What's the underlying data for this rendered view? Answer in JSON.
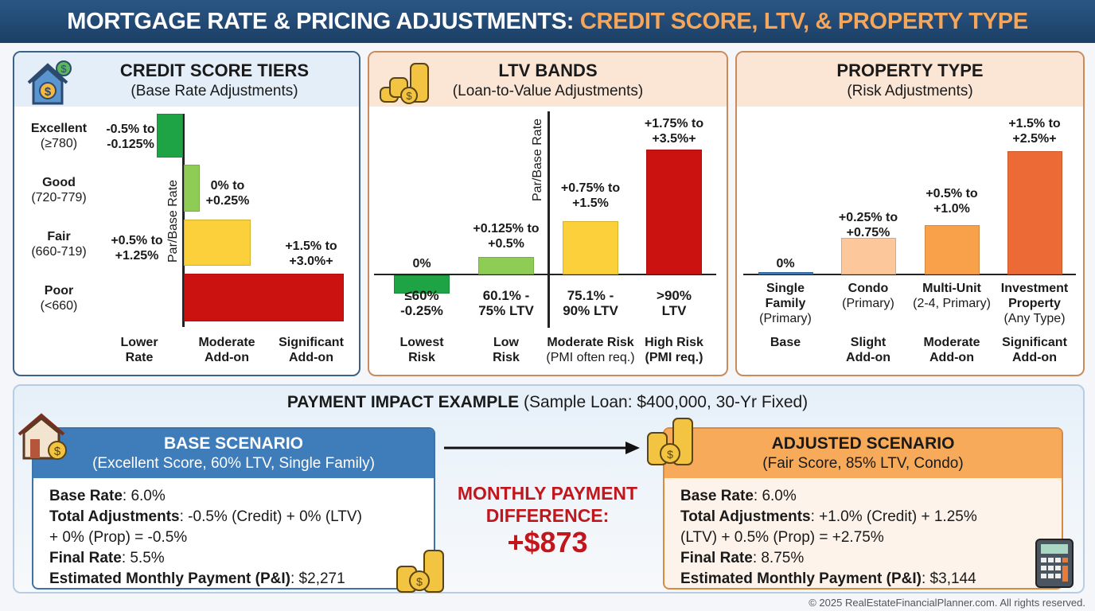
{
  "header": {
    "title_main": "MORTGAGE RATE & PRICING ADJUSTMENTS: ",
    "title_accent": "CREDIT SCORE, LTV, & PROPERTY TYPE"
  },
  "colors": {
    "green": "#1ea345",
    "light_green": "#8fcc55",
    "yellow": "#fcd03a",
    "red": "#cc1111",
    "navy": "#1f4a75",
    "orange": "#f6a65a"
  },
  "chart_data": [
    {
      "type": "bar",
      "orientation": "horizontal",
      "title": "CREDIT SCORE TIERS",
      "subtitle": "(Base Rate Adjustments)",
      "axis_label": "Par/Base Rate",
      "categories": [
        {
          "name": "Excellent",
          "range": "(≥780)"
        },
        {
          "name": "Good",
          "range": "(720-779)"
        },
        {
          "name": "Fair",
          "range": "(660-719)"
        },
        {
          "name": "Poor",
          "range": "(<660)"
        }
      ],
      "adjustments": [
        {
          "low": -0.5,
          "high": -0.125,
          "label1": "-0.5% to",
          "label2": "-0.125%"
        },
        {
          "low": 0,
          "high": 0.25,
          "label1": "0% to",
          "label2": "+0.25%"
        },
        {
          "low": 0.5,
          "high": 1.25,
          "label1": "+0.5% to",
          "label2": "+1.25%"
        },
        {
          "low": 1.5,
          "high": 3.0,
          "label1": "+1.5% to",
          "label2": "+3.0%+"
        }
      ],
      "scale_labels": [
        [
          "Lower",
          "Rate"
        ],
        [
          "Moderate",
          "Add-on"
        ],
        [
          "Significant",
          "Add-on"
        ]
      ]
    },
    {
      "type": "bar",
      "title": "LTV BANDS",
      "subtitle": "(Loan-to-Value Adjustments)",
      "axis_label": "Par/Base Rate",
      "categories": [
        [
          "≤60%",
          "-0.25%"
        ],
        [
          "60.1% -",
          "75% LTV"
        ],
        [
          "75.1% -",
          "90% LTV"
        ],
        [
          ">90%",
          "LTV"
        ]
      ],
      "adjustments": [
        {
          "low": -0.25,
          "high": 0,
          "label1": "0%",
          "label2": ""
        },
        {
          "low": 0.125,
          "high": 0.5,
          "label1": "+0.125% to",
          "label2": "+0.5%"
        },
        {
          "low": 0.75,
          "high": 1.5,
          "label1": "+0.75% to",
          "label2": "+1.5%"
        },
        {
          "low": 1.75,
          "high": 3.5,
          "label1": "+1.75% to",
          "label2": "+3.5%+"
        }
      ],
      "risk_labels": [
        [
          "Lowest",
          "Risk"
        ],
        [
          "Low",
          "Risk"
        ],
        [
          "Moderate Risk",
          "(PMI often req.)"
        ],
        [
          "High Risk",
          "(PMI req.)"
        ]
      ]
    },
    {
      "type": "bar",
      "title": "PROPERTY TYPE",
      "subtitle": "(Risk Adjustments)",
      "categories": [
        [
          "Single",
          "Family",
          "(Primary)"
        ],
        [
          "Condo",
          "(Primary)",
          ""
        ],
        [
          "Multi-Unit",
          "(2-4, Primary)",
          ""
        ],
        [
          "Investment",
          "Property",
          "(Any Type)"
        ]
      ],
      "adjustments": [
        {
          "low": 0,
          "high": 0,
          "label1": "0%",
          "label2": ""
        },
        {
          "low": 0.25,
          "high": 0.75,
          "label1": "+0.25% to",
          "label2": "+0.75%"
        },
        {
          "low": 0.5,
          "high": 1.0,
          "label1": "+0.5% to",
          "label2": "+1.0%"
        },
        {
          "low": 1.5,
          "high": 2.5,
          "label1": "+1.5% to",
          "label2": "+2.5%+"
        }
      ],
      "risk_labels": [
        [
          "Base",
          ""
        ],
        [
          "Slight",
          "Add-on"
        ],
        [
          "Moderate",
          "Add-on"
        ],
        [
          "Significant",
          "Add-on"
        ]
      ]
    }
  ],
  "example": {
    "title": "PAYMENT IMPACT EXAMPLE",
    "subtitle": " (Sample Loan: $400,000, 30-Yr Fixed)",
    "base": {
      "title": "BASE SCENARIO",
      "subtitle": "(Excellent Score, 60% LTV, Single Family)",
      "rows": [
        {
          "k": "Base Rate",
          "v": ": 6.0%"
        },
        {
          "k": "Total Adjustments",
          "v": ": -0.5% (Credit) + 0% (LTV)"
        },
        {
          "k": "",
          "v": "+ 0% (Prop) = -0.5%"
        },
        {
          "k": "Final Rate",
          "v": ": 5.5%"
        },
        {
          "k": "Estimated Monthly Payment (P&I)",
          "v": ": $2,271"
        }
      ]
    },
    "adjusted": {
      "title": "ADJUSTED SCENARIO",
      "subtitle": "(Fair Score, 85% LTV, Condo)",
      "rows": [
        {
          "k": "Base Rate",
          "v": ": 6.0%"
        },
        {
          "k": "Total Adjustments",
          "v": ": +1.0% (Credit) + 1.25%"
        },
        {
          "k": "",
          "v": "(LTV) + 0.5% (Prop) = +2.75%"
        },
        {
          "k": "Final Rate",
          "v": ": 8.75%"
        },
        {
          "k": "Estimated Monthly Payment (P&I)",
          "v": ": $3,144"
        }
      ]
    },
    "difference_label1": "MONTHLY PAYMENT",
    "difference_label2": "DIFFERENCE:",
    "difference_value": "+$873"
  },
  "footer": "© 2025 RealEstateFinancialPlanner.com. All rights reserved."
}
